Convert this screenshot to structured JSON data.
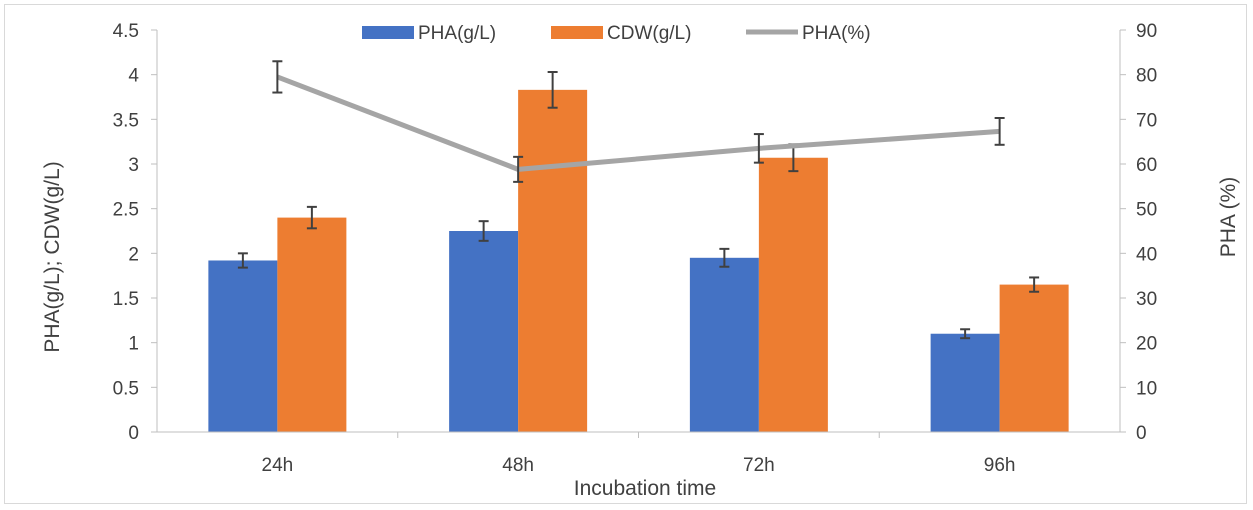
{
  "chart_data": {
    "type": "bar",
    "categories": [
      "24h",
      "48h",
      "72h",
      "96h"
    ],
    "xlabel": "Incubation time",
    "ylabel_left": "PHA(g/L); CDW(g/L)",
    "ylabel_right": "PHA (%)",
    "ylim_left": [
      0,
      4.5
    ],
    "ylim_right": [
      0,
      90
    ],
    "yticks_left": [
      "0",
      "0.5",
      "1",
      "1.5",
      "2",
      "2.5",
      "3",
      "3.5",
      "4",
      "4.5"
    ],
    "yticks_right": [
      "0",
      "10",
      "20",
      "30",
      "40",
      "50",
      "60",
      "70",
      "80",
      "90"
    ],
    "legend_position": "top-center",
    "gridlines": false,
    "series": [
      {
        "name": "PHA(g/L)",
        "kind": "bar",
        "axis": "left",
        "color": "#4472c4",
        "values": [
          1.92,
          2.25,
          1.95,
          1.1
        ],
        "errors": [
          0.08,
          0.11,
          0.1,
          0.05
        ]
      },
      {
        "name": "CDW(g/L)",
        "kind": "bar",
        "axis": "left",
        "color": "#ed7d31",
        "values": [
          2.4,
          3.83,
          3.07,
          1.65
        ],
        "errors": [
          0.12,
          0.2,
          0.15,
          0.08
        ]
      },
      {
        "name": "PHA(%)",
        "kind": "line",
        "axis": "right",
        "color": "#a5a5a5",
        "values": [
          79.5,
          58.8,
          63.5,
          67.3
        ],
        "errors": [
          3.5,
          2.8,
          3.2,
          3.0
        ]
      }
    ]
  }
}
